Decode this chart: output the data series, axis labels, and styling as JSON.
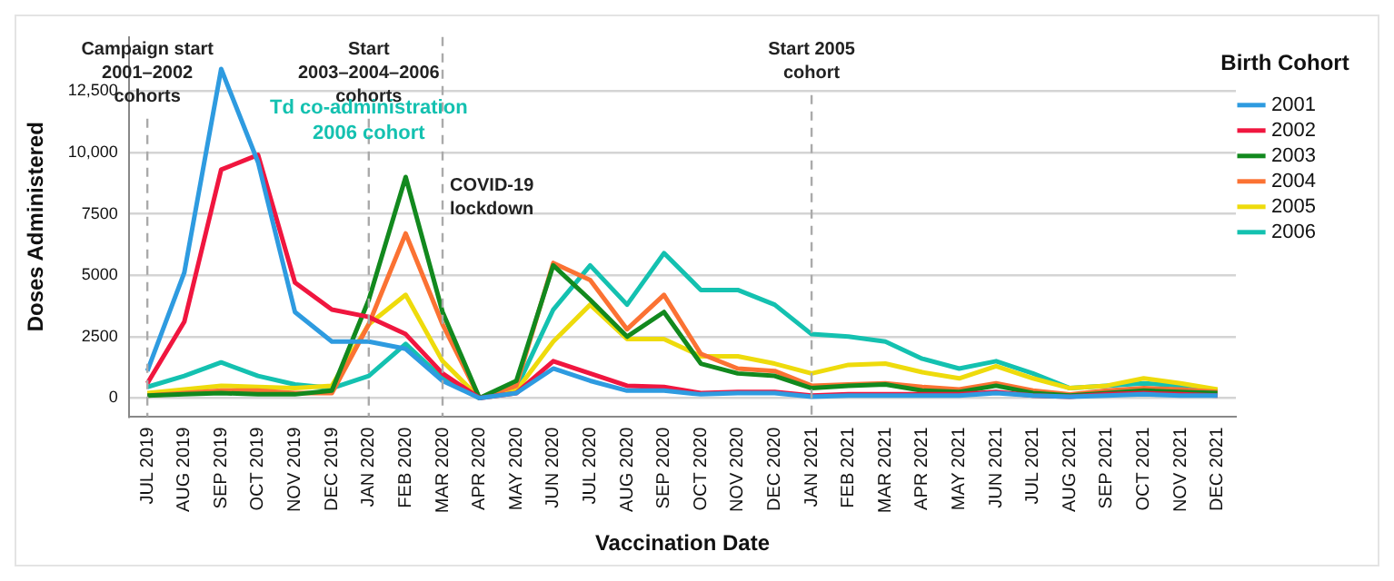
{
  "chart_data": {
    "type": "line",
    "xlabel": "Vaccination Date",
    "ylabel": "Doses Administered",
    "legend_title": "Birth Cohort",
    "legend": "top right",
    "grid": "y",
    "marker": "none",
    "line_style": "solid",
    "categories": [
      "JUL 2019",
      "AUG 2019",
      "SEP 2019",
      "OCT 2019",
      "NOV 2019",
      "DEC 2019",
      "JAN 2020",
      "FEB 2020",
      "MAR 2020",
      "APR 2020",
      "MAY 2020",
      "JUN 2020",
      "JUL 2020",
      "AUG 2020",
      "SEP 2020",
      "OCT 2020",
      "NOV 2020",
      "DEC 2020",
      "JAN 2021",
      "FEB 2021",
      "MAR 2021",
      "APR 2021",
      "MAY 2021",
      "JUN 2021",
      "JUL 2021",
      "AUG 2021",
      "SEP 2021",
      "OCT 2021",
      "NOV 2021",
      "DEC 2021"
    ],
    "ylim": [
      -750,
      14700
    ],
    "yticks": [
      0,
      2500,
      5000,
      7500,
      {
        "value": 10000,
        "label": "10,000"
      },
      {
        "value": 12500,
        "label": "12,500"
      }
    ],
    "series": [
      {
        "name": "2001",
        "color": "#2e9be0",
        "values": [
          1100,
          5100,
          13400,
          9600,
          3500,
          2300,
          2300,
          2000,
          700,
          0,
          200,
          1200,
          700,
          300,
          300,
          150,
          200,
          200,
          50,
          100,
          100,
          100,
          100,
          200,
          100,
          50,
          100,
          150,
          100,
          100
        ]
      },
      {
        "name": "2002",
        "color": "#f0163f",
        "values": [
          600,
          3100,
          9300,
          9900,
          4700,
          3600,
          3300,
          2600,
          1000,
          0,
          200,
          1500,
          1000,
          500,
          450,
          200,
          250,
          250,
          100,
          150,
          150,
          150,
          150,
          250,
          100,
          50,
          150,
          200,
          150,
          100
        ]
      },
      {
        "name": "2003",
        "color": "#12891e",
        "values": [
          100,
          150,
          200,
          150,
          150,
          300,
          4000,
          9000,
          3500,
          0,
          700,
          5400,
          4000,
          2500,
          3500,
          1400,
          1000,
          900,
          400,
          500,
          550,
          300,
          250,
          500,
          200,
          100,
          200,
          300,
          250,
          200
        ]
      },
      {
        "name": "2004",
        "color": "#fb7233",
        "values": [
          100,
          200,
          300,
          300,
          200,
          200,
          3000,
          6700,
          3000,
          0,
          500,
          5500,
          4800,
          2800,
          4200,
          1800,
          1200,
          1100,
          500,
          550,
          600,
          450,
          350,
          600,
          300,
          150,
          300,
          400,
          350,
          250
        ]
      },
      {
        "name": "2005",
        "color": "#eedb0c",
        "values": [
          200,
          350,
          500,
          450,
          400,
          500,
          3000,
          4200,
          1500,
          0,
          300,
          2300,
          3800,
          2400,
          2400,
          1700,
          1700,
          1400,
          1000,
          1350,
          1400,
          1050,
          800,
          1300,
          800,
          400,
          500,
          800,
          600,
          350
        ]
      },
      {
        "name": "2006",
        "color": "#14c1b0",
        "values": [
          450,
          900,
          1450,
          900,
          550,
          400,
          900,
          2200,
          800,
          0,
          400,
          3600,
          5400,
          3800,
          5900,
          4400,
          4400,
          3800,
          2600,
          2500,
          2300,
          1600,
          1200,
          1500,
          1000,
          400,
          500,
          600,
          500,
          300
        ]
      }
    ],
    "ref_lines": [
      {
        "axis": "x",
        "value": "JUL 2019",
        "label": "Campaign start\n2001–2002\ncohorts",
        "color": "#aaaaaa",
        "line_style": "dashed"
      },
      {
        "axis": "x",
        "value": "JAN 2020",
        "label": "Start\n2003–2004–2006\ncohorts",
        "color": "#aaaaaa",
        "line_style": "dashed"
      },
      {
        "axis": "x",
        "value": "MAR 2020",
        "label": "COVID-19\nlockdown",
        "color": "#aaaaaa",
        "line_style": "dashed"
      },
      {
        "axis": "x",
        "value": "JAN 2021",
        "label": "Start 2005\ncohort",
        "color": "#aaaaaa",
        "line_style": "dashed"
      }
    ],
    "annotations": [
      {
        "text": "Td co-administration\n2006 cohort",
        "x": "JAN 2020",
        "y": 11300
      }
    ]
  }
}
